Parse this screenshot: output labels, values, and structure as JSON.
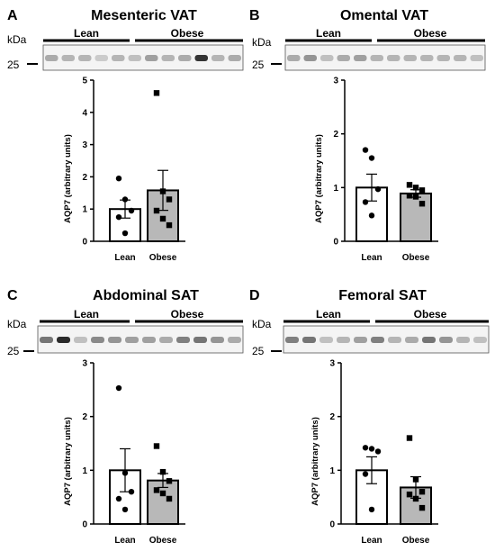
{
  "chart_data": [
    {
      "panel_label": "A",
      "title": "Mesenteric VAT",
      "type": "bar",
      "blot": {
        "unit_label": "kDa",
        "marker": "25",
        "groups": [
          "Lean",
          "Obese"
        ],
        "band_intensity": [
          0.3,
          0.25,
          0.25,
          0.15,
          0.25,
          0.2,
          0.35,
          0.25,
          0.3,
          0.85,
          0.25,
          0.3
        ]
      },
      "categories": [
        "Lean",
        "Obese"
      ],
      "values": [
        1.0,
        1.58
      ],
      "sem": [
        0.28,
        0.62
      ],
      "points": [
        [
          1.95,
          1.3,
          0.95,
          0.75,
          0.25
        ],
        [
          4.6,
          1.55,
          1.3,
          0.95,
          0.7,
          0.5
        ]
      ],
      "markers": [
        "circle",
        "square"
      ],
      "fills": [
        "#ffffff",
        "#b8b8b8"
      ],
      "ylabel": "AQP7 (arbitrary units)",
      "ylim": [
        0,
        5
      ],
      "yticks": [
        "0",
        "1",
        "2",
        "3",
        "4",
        "5"
      ]
    },
    {
      "panel_label": "B",
      "title": "Omental VAT",
      "type": "bar",
      "blot": {
        "unit_label": "kDa",
        "marker": "25",
        "groups": [
          "Lean",
          "Obese"
        ],
        "band_intensity": [
          0.3,
          0.4,
          0.2,
          0.3,
          0.35,
          0.25,
          0.25,
          0.25,
          0.25,
          0.25,
          0.25,
          0.2
        ]
      },
      "categories": [
        "Lean",
        "Obese"
      ],
      "values": [
        1.0,
        0.89
      ],
      "sem": [
        0.25,
        0.07
      ],
      "points": [
        [
          1.7,
          1.55,
          0.97,
          0.73,
          0.48
        ],
        [
          1.05,
          1.0,
          0.95,
          0.85,
          0.83,
          0.7
        ]
      ],
      "markers": [
        "circle",
        "square"
      ],
      "fills": [
        "#ffffff",
        "#b8b8b8"
      ],
      "ylabel": "AQP7 (arbitrary units)",
      "ylim": [
        0,
        3
      ],
      "yticks": [
        "0",
        "1",
        "2",
        "3"
      ]
    },
    {
      "panel_label": "C",
      "title": "Abdominal SAT",
      "type": "bar",
      "blot": {
        "unit_label": "kDa",
        "marker": "25",
        "groups": [
          "Lean",
          "Obese"
        ],
        "band_intensity": [
          0.55,
          0.9,
          0.2,
          0.45,
          0.4,
          0.35,
          0.35,
          0.3,
          0.5,
          0.55,
          0.4,
          0.3
        ]
      },
      "categories": [
        "Lean",
        "Obese"
      ],
      "values": [
        1.0,
        0.81
      ],
      "sem": [
        0.4,
        0.13
      ],
      "points": [
        [
          2.53,
          0.95,
          0.6,
          0.47,
          0.27
        ],
        [
          1.45,
          0.97,
          0.8,
          0.63,
          0.57,
          0.47
        ]
      ],
      "markers": [
        "circle",
        "square"
      ],
      "fills": [
        "#ffffff",
        "#b8b8b8"
      ],
      "ylabel": "AQP7 (arbitrary units)",
      "ylim": [
        0,
        3
      ],
      "yticks": [
        "0",
        "1",
        "2",
        "3"
      ]
    },
    {
      "panel_label": "D",
      "title": "Femoral SAT",
      "type": "bar",
      "blot": {
        "unit_label": "kDa",
        "marker": "25",
        "groups": [
          "Lean",
          "Obese"
        ],
        "band_intensity": [
          0.5,
          0.55,
          0.2,
          0.25,
          0.35,
          0.5,
          0.25,
          0.3,
          0.55,
          0.4,
          0.25,
          0.2
        ]
      },
      "categories": [
        "Lean",
        "Obese"
      ],
      "values": [
        1.0,
        0.68
      ],
      "sem": [
        0.25,
        0.2
      ],
      "points": [
        [
          1.42,
          1.4,
          1.35,
          0.93,
          0.27
        ],
        [
          1.6,
          0.83,
          0.6,
          0.55,
          0.47,
          0.3
        ]
      ],
      "markers": [
        "circle",
        "square"
      ],
      "fills": [
        "#ffffff",
        "#b8b8b8"
      ],
      "ylabel": "AQP7 (arbitrary units)",
      "ylim": [
        0,
        3
      ],
      "yticks": [
        "0",
        "1",
        "2",
        "3"
      ]
    }
  ]
}
